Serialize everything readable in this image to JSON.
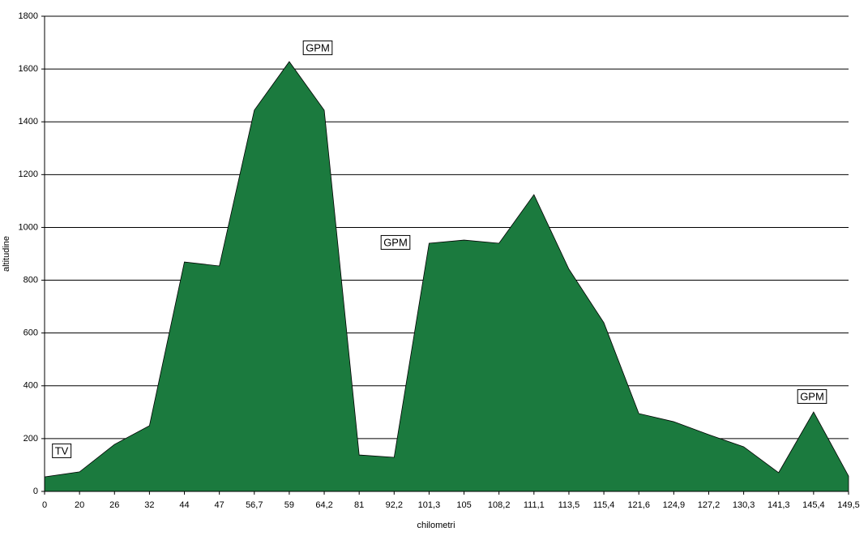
{
  "chart_data": {
    "type": "area",
    "x_label": "chilometri",
    "y_label": "altitudine",
    "categories": [
      "0",
      "20",
      "26",
      "32",
      "44",
      "47",
      "56,7",
      "59",
      "64,2",
      "81",
      "92,2",
      "101,3",
      "105",
      "108,2",
      "111,1",
      "113,5",
      "115,4",
      "121,6",
      "124,9",
      "127,2",
      "130,3",
      "141,3",
      "145,4",
      "149,5"
    ],
    "values": [
      55,
      74,
      178,
      249,
      869,
      854,
      1444,
      1628,
      1444,
      138,
      129,
      940,
      952,
      940,
      1124,
      842,
      639,
      295,
      264,
      215,
      169,
      71,
      301,
      58
    ],
    "color": "#1b7a3e",
    "ylim": [
      0,
      1800
    ],
    "yticks": [
      0,
      200,
      400,
      600,
      800,
      1000,
      1200,
      1400,
      1600,
      1800
    ],
    "grid": true,
    "annotations": [
      "TV",
      "GPM",
      "GPM",
      "GPM"
    ]
  }
}
